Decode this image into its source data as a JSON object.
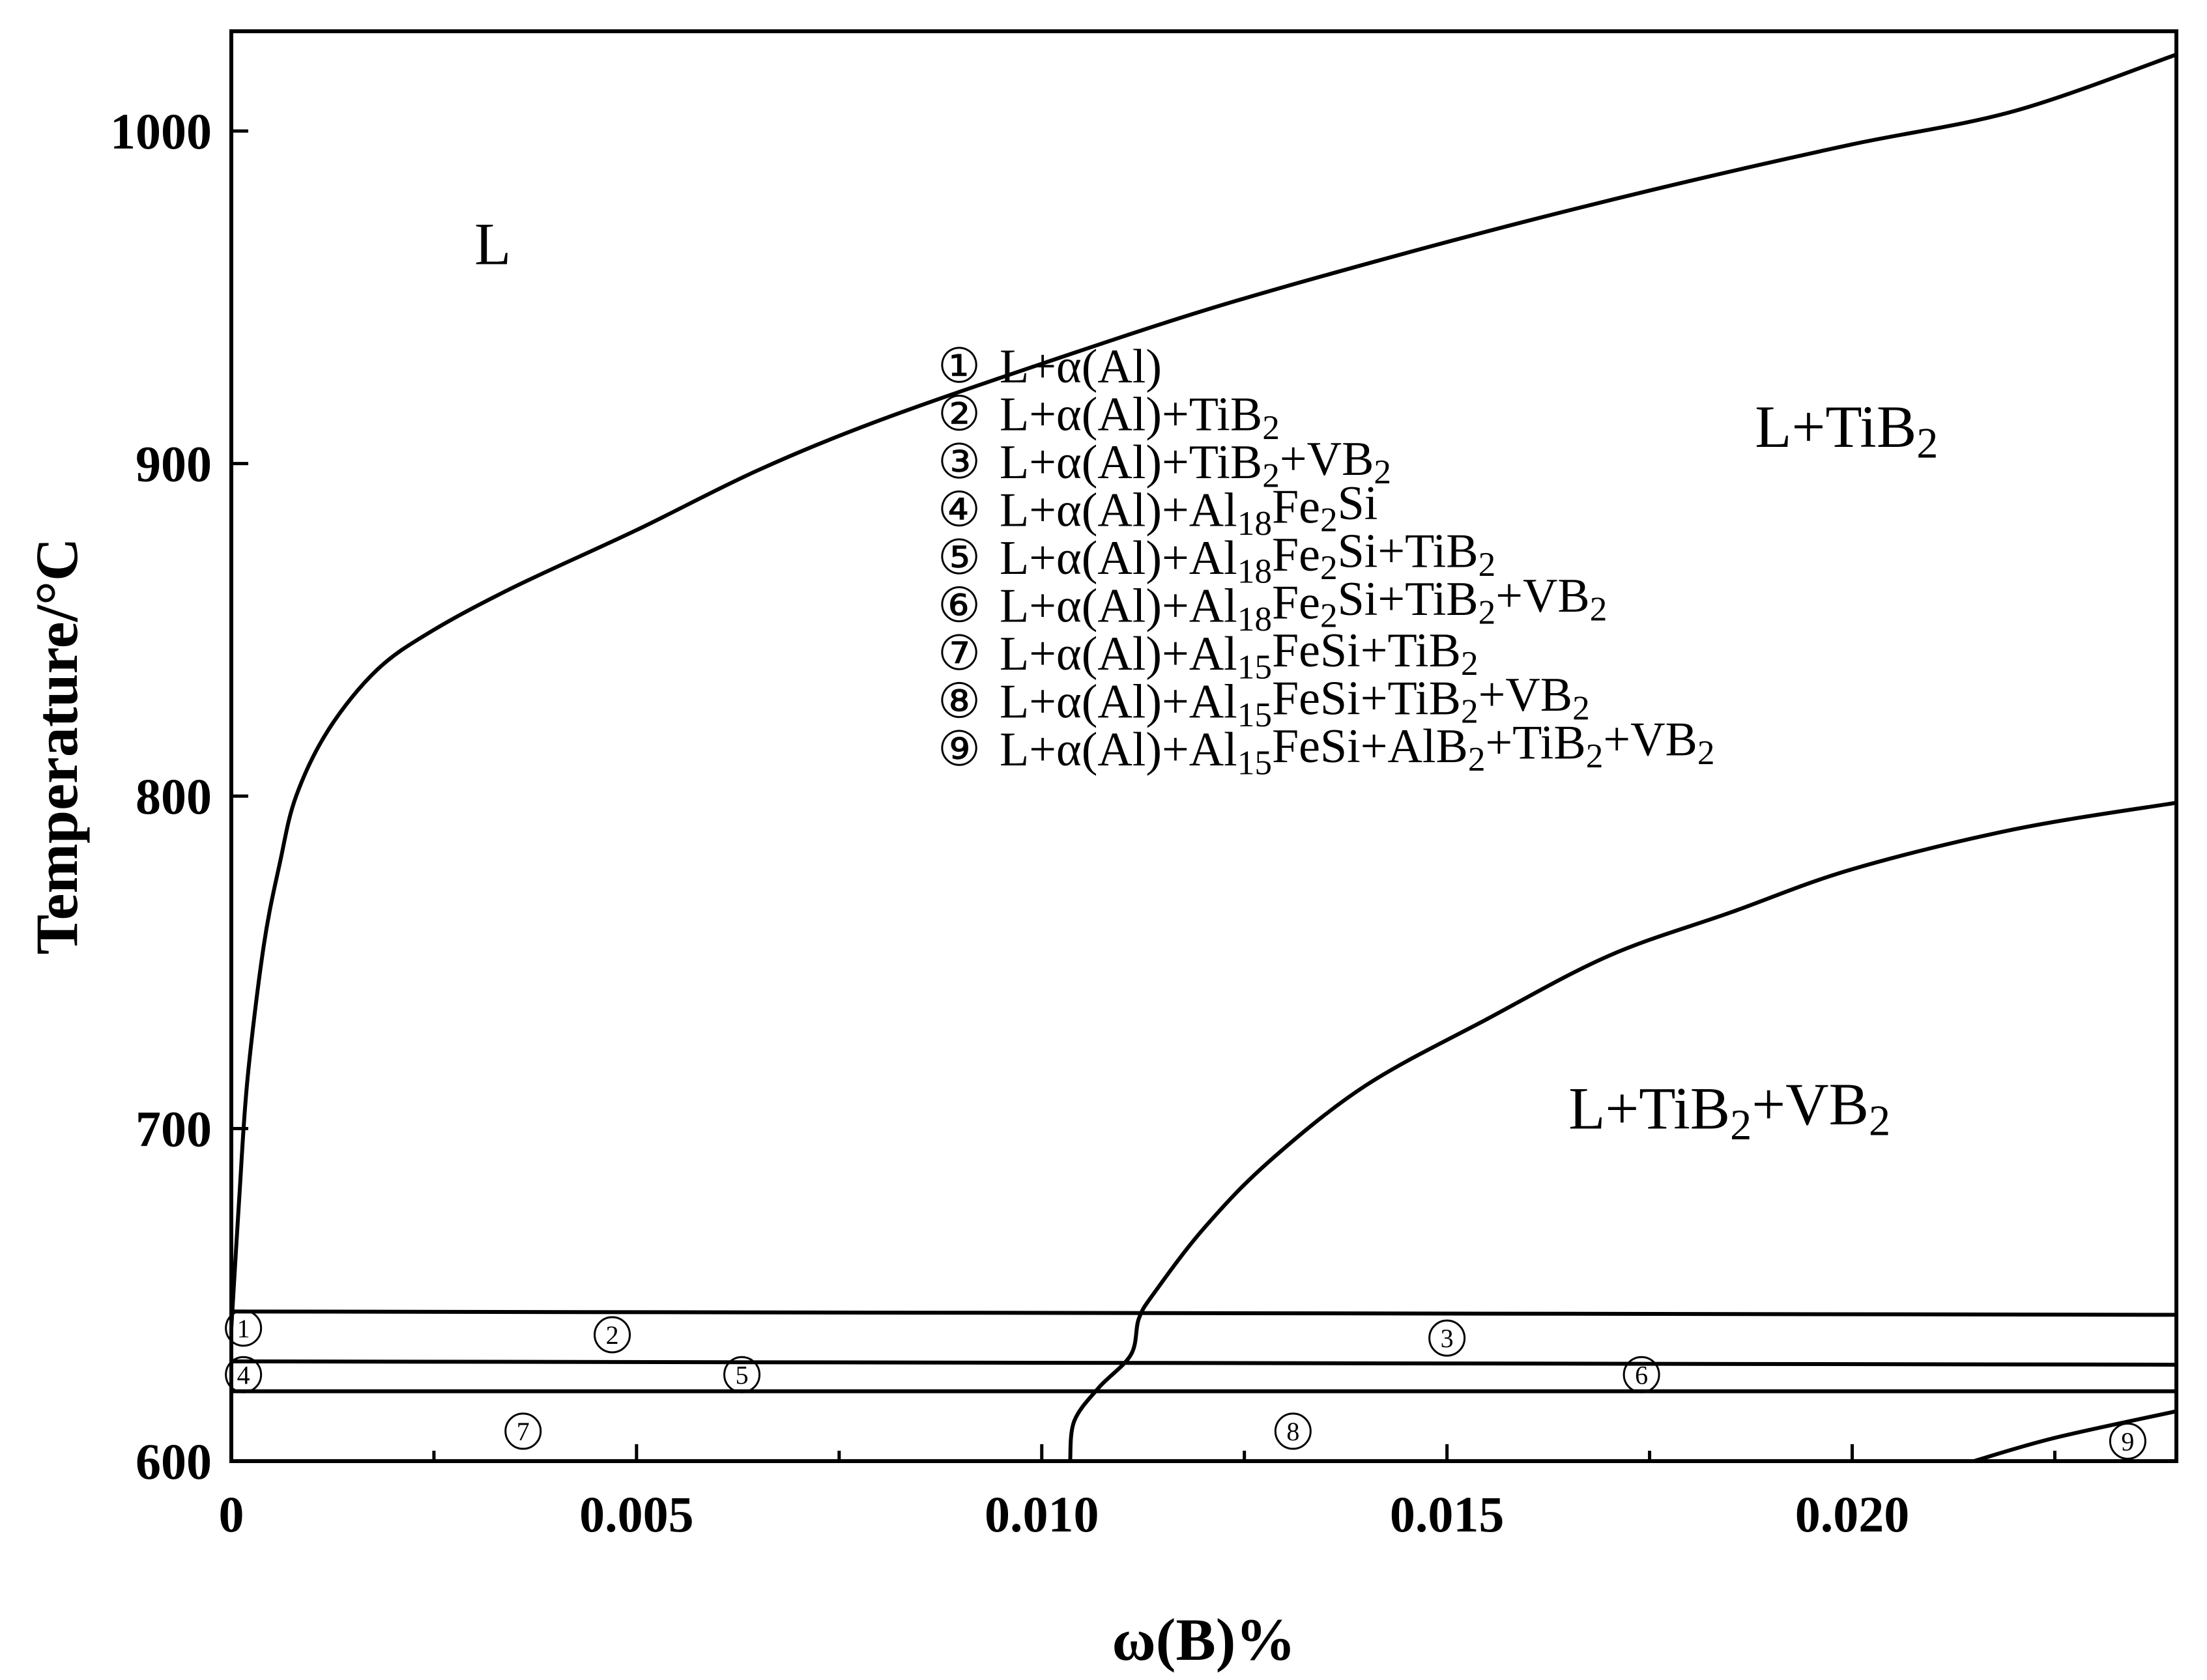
{
  "chart_data": {
    "type": "line",
    "xlabel": "ω(B)%",
    "ylabel": "Temperature/°C",
    "xlim": [
      0,
      0.024
    ],
    "ylim": [
      600,
      1030
    ],
    "x_ticks": [
      {
        "value": 0,
        "label": "0"
      },
      {
        "value": 0.005,
        "label": "0.005"
      },
      {
        "value": 0.01,
        "label": "0.010"
      },
      {
        "value": 0.015,
        "label": "0.015"
      },
      {
        "value": 0.02,
        "label": "0.020"
      }
    ],
    "x_minor_ticks": [
      0.0025,
      0.0075,
      0.0125,
      0.0175,
      0.0225
    ],
    "y_ticks": [
      {
        "value": 600,
        "label": "600"
      },
      {
        "value": 700,
        "label": "700"
      },
      {
        "value": 800,
        "label": "800"
      },
      {
        "value": 900,
        "label": "900"
      },
      {
        "value": 1000,
        "label": "1000"
      }
    ],
    "grid": false,
    "series": [
      {
        "points": [
          [
            0,
            640
          ],
          [
            0.0001,
            680
          ],
          [
            0.0002,
            715
          ],
          [
            0.0004,
            755
          ],
          [
            0.0006,
            780
          ],
          [
            0.0008,
            800
          ],
          [
            0.0012,
            820
          ],
          [
            0.0018,
            838
          ],
          [
            0.0025,
            850
          ],
          [
            0.0035,
            863
          ],
          [
            0.005,
            880
          ],
          [
            0.0065,
            898
          ],
          [
            0.008,
            913
          ],
          [
            0.01,
            930
          ],
          [
            0.012,
            946
          ],
          [
            0.014,
            960
          ],
          [
            0.016,
            973
          ],
          [
            0.018,
            985
          ],
          [
            0.02,
            996
          ],
          [
            0.022,
            1006
          ],
          [
            0.024,
            1023
          ]
        ]
      },
      {
        "points": [
          [
            0.01035,
            600
          ],
          [
            0.0104,
            612
          ],
          [
            0.0107,
            622
          ],
          [
            0.0111,
            632
          ],
          [
            0.0112,
            643
          ],
          [
            0.0114,
            651
          ],
          [
            0.012,
            670
          ],
          [
            0.0128,
            690
          ],
          [
            0.014,
            713
          ],
          [
            0.0155,
            733
          ],
          [
            0.017,
            752
          ],
          [
            0.0185,
            765
          ],
          [
            0.02,
            778
          ],
          [
            0.022,
            790
          ],
          [
            0.024,
            798
          ]
        ]
      },
      {
        "points": [
          [
            0,
            645
          ],
          [
            0.024,
            644
          ]
        ]
      },
      {
        "points": [
          [
            0,
            630
          ],
          [
            0.024,
            629
          ]
        ]
      },
      {
        "points": [
          [
            0,
            621
          ],
          [
            0.024,
            621
          ]
        ]
      },
      {
        "points": [
          [
            0.0215,
            600
          ],
          [
            0.0225,
            607
          ],
          [
            0.024,
            615
          ]
        ]
      }
    ],
    "region_labels": [
      {
        "parts": [
          {
            "t": "L"
          }
        ],
        "x": 0.003,
        "y": 960
      },
      {
        "parts": [
          {
            "t": "L+TiB"
          },
          {
            "t": "2",
            "sub": true
          }
        ],
        "x": 0.0188,
        "y": 905
      },
      {
        "parts": [
          {
            "t": "L+TiB"
          },
          {
            "t": "2",
            "sub": true
          },
          {
            "t": "+VB"
          },
          {
            "t": "2",
            "sub": true
          }
        ],
        "x": 0.0165,
        "y": 700
      }
    ],
    "legend": [
      {
        "number": "①",
        "parts": [
          {
            "t": "L+α(Al)"
          }
        ]
      },
      {
        "number": "②",
        "parts": [
          {
            "t": "L+α(Al)+TiB"
          },
          {
            "t": "2",
            "sub": true
          }
        ]
      },
      {
        "number": "③",
        "parts": [
          {
            "t": "L+α(Al)+TiB"
          },
          {
            "t": "2",
            "sub": true
          },
          {
            "t": "+VB"
          },
          {
            "t": "2",
            "sub": true
          }
        ]
      },
      {
        "number": "④",
        "parts": [
          {
            "t": "L+α(Al)+Al"
          },
          {
            "t": "18",
            "sub": true
          },
          {
            "t": "Fe"
          },
          {
            "t": "2",
            "sub": true
          },
          {
            "t": "Si"
          }
        ]
      },
      {
        "number": "⑤",
        "parts": [
          {
            "t": "L+α(Al)+Al"
          },
          {
            "t": "18",
            "sub": true
          },
          {
            "t": "Fe"
          },
          {
            "t": "2",
            "sub": true
          },
          {
            "t": "Si+TiB"
          },
          {
            "t": "2",
            "sub": true
          }
        ]
      },
      {
        "number": "⑥",
        "parts": [
          {
            "t": "L+α(Al)+Al"
          },
          {
            "t": "18",
            "sub": true
          },
          {
            "t": "Fe"
          },
          {
            "t": "2",
            "sub": true
          },
          {
            "t": "Si+TiB"
          },
          {
            "t": "2",
            "sub": true
          },
          {
            "t": "+VB"
          },
          {
            "t": "2",
            "sub": true
          }
        ]
      },
      {
        "number": "⑦",
        "parts": [
          {
            "t": "L+α(Al)+Al"
          },
          {
            "t": "15",
            "sub": true
          },
          {
            "t": "FeSi+TiB"
          },
          {
            "t": "2",
            "sub": true
          }
        ]
      },
      {
        "number": "⑧",
        "parts": [
          {
            "t": "L+α(Al)+Al"
          },
          {
            "t": "15",
            "sub": true
          },
          {
            "t": "FeSi+TiB"
          },
          {
            "t": "2",
            "sub": true
          },
          {
            "t": "+VB"
          },
          {
            "t": "2",
            "sub": true
          }
        ]
      },
      {
        "number": "⑨",
        "parts": [
          {
            "t": "L+α(Al)+Al"
          },
          {
            "t": "15",
            "sub": true
          },
          {
            "t": "FeSi+AlB"
          },
          {
            "t": "2",
            "sub": true
          },
          {
            "t": "+TiB"
          },
          {
            "t": "2",
            "sub": true
          },
          {
            "t": "+VB"
          },
          {
            "t": "2",
            "sub": true
          }
        ]
      }
    ],
    "markers": [
      {
        "label": "1",
        "x": 0.00015,
        "y": 640
      },
      {
        "label": "2",
        "x": 0.0047,
        "y": 638
      },
      {
        "label": "3",
        "x": 0.015,
        "y": 637
      },
      {
        "label": "4",
        "x": 0.00015,
        "y": 626
      },
      {
        "label": "5",
        "x": 0.0063,
        "y": 626
      },
      {
        "label": "6",
        "x": 0.0174,
        "y": 626
      },
      {
        "label": "7",
        "x": 0.0036,
        "y": 609
      },
      {
        "label": "8",
        "x": 0.0131,
        "y": 609
      },
      {
        "label": "9",
        "x": 0.0234,
        "y": 606
      }
    ]
  }
}
